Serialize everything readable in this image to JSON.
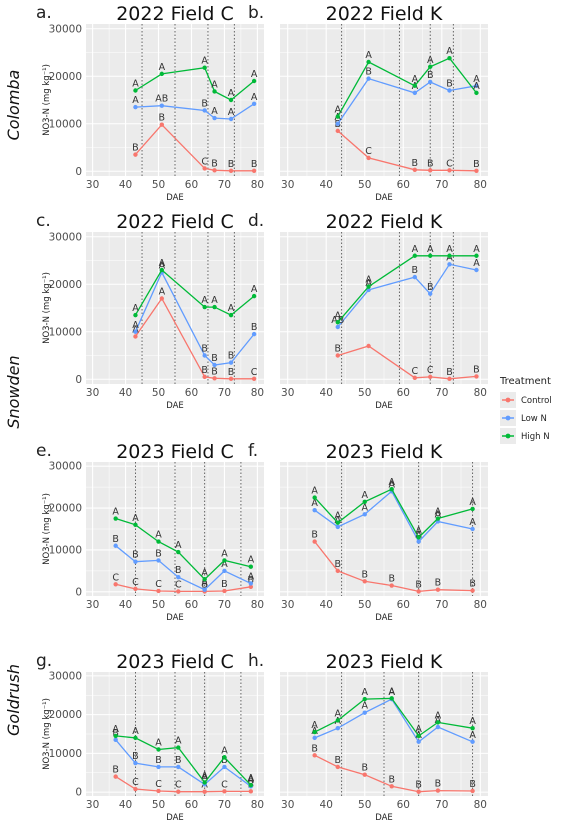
{
  "figure": {
    "panel_letters": [
      "a.",
      "b.",
      "c.",
      "d.",
      "e.",
      "f.",
      "g.",
      "h."
    ],
    "cultivars": [
      "Colomba",
      "Snowden",
      "Goldrush"
    ],
    "legend": {
      "title": "Treatment",
      "items": [
        {
          "label": "Control",
          "color": "#F8766D"
        },
        {
          "label": "Low N",
          "color": "#619CFF"
        },
        {
          "label": "High N",
          "color": "#00BA38"
        }
      ]
    },
    "colors": {
      "panel_bg": "#EBEBEB",
      "grid": "#FFFFFF",
      "vline": "#555555"
    }
  },
  "chart_data": [
    {
      "type": "line",
      "panel": "a.",
      "title": "2022 Field C",
      "xlabel": "DAE",
      "ylabel": "NO3-N (mg kg⁻¹)",
      "show_ylabel": true,
      "xlim": [
        28,
        82
      ],
      "ylim": [
        -1000,
        31000
      ],
      "xticks": [
        30,
        40,
        50,
        60,
        70,
        80
      ],
      "yticks": [
        0,
        10000,
        20000,
        30000
      ],
      "ytick_labels": [
        "0",
        "10000",
        "20000",
        "30000"
      ],
      "vlines": [
        45,
        55,
        65,
        73
      ],
      "x": [
        43,
        51,
        64,
        67,
        72,
        79
      ],
      "series": [
        {
          "name": "Control",
          "values": [
            3500,
            9800,
            600,
            200,
            100,
            100
          ],
          "letters": [
            "B",
            "B",
            "C",
            "B",
            "B",
            "B"
          ]
        },
        {
          "name": "Low N",
          "values": [
            13500,
            13800,
            12800,
            11200,
            11000,
            14200
          ],
          "letters": [
            "A",
            "AB",
            "B",
            "A",
            "A",
            "A"
          ]
        },
        {
          "name": "High N",
          "values": [
            17000,
            20500,
            21800,
            16800,
            15000,
            19000
          ],
          "letters": [
            "A",
            "A",
            "A",
            "A",
            "A",
            "A"
          ]
        }
      ]
    },
    {
      "type": "line",
      "panel": "b.",
      "title": "2022 Field K",
      "xlabel": "DAE",
      "ylabel": "",
      "show_ylabel": false,
      "xlim": [
        28,
        82
      ],
      "ylim": [
        -1000,
        31000
      ],
      "xticks": [
        30,
        40,
        50,
        60,
        70,
        80
      ],
      "yticks": [
        0,
        10000,
        20000,
        30000
      ],
      "ytick_labels": [
        "",
        "",
        "",
        ""
      ],
      "vlines": [
        44,
        59,
        67,
        73
      ],
      "x": [
        43,
        51,
        63,
        67,
        72,
        79
      ],
      "series": [
        {
          "name": "Control",
          "values": [
            8500,
            2800,
            300,
            200,
            200,
            100
          ],
          "letters": [
            "B",
            "C",
            "B",
            "B",
            "C",
            "B"
          ]
        },
        {
          "name": "Low N",
          "values": [
            10000,
            19500,
            16500,
            18800,
            17000,
            18000
          ],
          "letters": [
            "A",
            "B",
            "A",
            "B",
            "B",
            "A"
          ]
        },
        {
          "name": "High N",
          "values": [
            11500,
            23000,
            18000,
            22000,
            23800,
            16500
          ],
          "letters": [
            "A",
            "A",
            "A",
            "A",
            "A",
            "A"
          ]
        }
      ]
    },
    {
      "type": "line",
      "panel": "c.",
      "title": "2022 Field C",
      "xlabel": "DAE",
      "ylabel": "NO3-N (mg kg⁻¹)",
      "show_ylabel": true,
      "xlim": [
        28,
        82
      ],
      "ylim": [
        -1000,
        31000
      ],
      "xticks": [
        30,
        40,
        50,
        60,
        70,
        80
      ],
      "yticks": [
        0,
        10000,
        20000,
        30000
      ],
      "ytick_labels": [
        "0",
        "10000",
        "20000",
        "30000"
      ],
      "vlines": [
        45,
        55,
        65,
        73
      ],
      "x": [
        43,
        51,
        64,
        67,
        72,
        79
      ],
      "series": [
        {
          "name": "Control",
          "values": [
            9000,
            17000,
            500,
            200,
            100,
            100
          ],
          "letters": [
            "A",
            "A",
            "B",
            "B",
            "B",
            "C"
          ]
        },
        {
          "name": "Low N",
          "values": [
            10000,
            22500,
            5000,
            3000,
            3500,
            9500
          ],
          "letters": [
            "A",
            "A",
            "B",
            "B",
            "B",
            "B"
          ]
        },
        {
          "name": "High N",
          "values": [
            13500,
            23000,
            15200,
            15200,
            13500,
            17500
          ],
          "letters": [
            "A",
            "A",
            "A",
            "A",
            "A",
            "A"
          ]
        }
      ]
    },
    {
      "type": "line",
      "panel": "d.",
      "title": "2022 Field K",
      "xlabel": "DAE",
      "ylabel": "",
      "show_ylabel": false,
      "xlim": [
        28,
        82
      ],
      "ylim": [
        -1000,
        31000
      ],
      "xticks": [
        30,
        40,
        50,
        60,
        70,
        80
      ],
      "yticks": [
        0,
        10000,
        20000,
        30000
      ],
      "ytick_labels": [
        "",
        "",
        "",
        ""
      ],
      "vlines": [
        44,
        59,
        67,
        73
      ],
      "x": [
        43,
        51,
        63,
        67,
        72,
        79
      ],
      "series": [
        {
          "name": "Control",
          "values": [
            5000,
            7000,
            300,
            500,
            100,
            600
          ],
          "letters": [
            "B",
            "",
            "C",
            "C",
            "B",
            "B"
          ]
        },
        {
          "name": "Low N",
          "values": [
            11000,
            18800,
            21500,
            18000,
            24200,
            23000
          ],
          "letters": [
            "AB",
            "A",
            "B",
            "B",
            "A",
            "A"
          ]
        },
        {
          "name": "High N",
          "values": [
            12000,
            19500,
            26000,
            26000,
            26000,
            26000
          ],
          "letters": [
            "A",
            "A",
            "A",
            "A",
            "A",
            "A"
          ]
        }
      ]
    },
    {
      "type": "line",
      "panel": "e.",
      "title": "2023 Field C",
      "xlabel": "DAE",
      "ylabel": "NO3-N (mg kg⁻¹)",
      "show_ylabel": true,
      "xlim": [
        28,
        82
      ],
      "ylim": [
        -1000,
        31000
      ],
      "xticks": [
        30,
        40,
        50,
        60,
        70,
        80
      ],
      "yticks": [
        0,
        10000,
        20000,
        30000
      ],
      "ytick_labels": [
        "0",
        "10000",
        "20000",
        "30000"
      ],
      "vlines": [
        43,
        55,
        64,
        75
      ],
      "x": [
        37,
        43,
        50,
        56,
        64,
        70,
        78
      ],
      "series": [
        {
          "name": "Control",
          "values": [
            1800,
            700,
            200,
            100,
            100,
            200,
            1200
          ],
          "letters": [
            "C",
            "C",
            "C",
            "C",
            "B",
            "B",
            "B"
          ]
        },
        {
          "name": "Low N",
          "values": [
            11000,
            7200,
            7500,
            3500,
            500,
            5000,
            2000
          ],
          "letters": [
            "B",
            "B",
            "B",
            "B",
            "A",
            "A",
            "A"
          ]
        },
        {
          "name": "High N",
          "values": [
            17500,
            16000,
            12000,
            9500,
            3000,
            7500,
            6000
          ],
          "letters": [
            "A",
            "A",
            "A",
            "A",
            "A",
            "A",
            "A"
          ]
        }
      ]
    },
    {
      "type": "line",
      "panel": "f.",
      "title": "2023 Field K",
      "xlabel": "DAE",
      "ylabel": "",
      "show_ylabel": false,
      "xlim": [
        28,
        82
      ],
      "ylim": [
        -1000,
        31000
      ],
      "xticks": [
        30,
        40,
        50,
        60,
        70,
        80
      ],
      "yticks": [
        0,
        10000,
        20000,
        30000
      ],
      "ytick_labels": [
        "",
        "",
        "",
        ""
      ],
      "vlines": [
        44,
        64,
        78
      ],
      "x": [
        37,
        43,
        50,
        57,
        64,
        69,
        78
      ],
      "series": [
        {
          "name": "Control",
          "values": [
            12000,
            5000,
            2500,
            1500,
            100,
            500,
            300
          ],
          "letters": [
            "B",
            "B",
            "B",
            "B",
            "B",
            "B",
            "B"
          ]
        },
        {
          "name": "Low N",
          "values": [
            19500,
            15500,
            18500,
            24000,
            12000,
            16800,
            15000
          ],
          "letters": [
            "A",
            "A",
            "A",
            "A",
            "A",
            "A",
            "A"
          ]
        },
        {
          "name": "High N",
          "values": [
            22500,
            16500,
            21500,
            24500,
            13000,
            17500,
            19800
          ],
          "letters": [
            "A",
            "A",
            "A",
            "A",
            "A",
            "A",
            "A"
          ]
        }
      ]
    },
    {
      "type": "line",
      "panel": "g.",
      "title": "2023 Field C",
      "xlabel": "DAE",
      "ylabel": "NO3-N (mg kg⁻¹)",
      "show_ylabel": true,
      "xlim": [
        28,
        82
      ],
      "ylim": [
        -1000,
        31000
      ],
      "xticks": [
        30,
        40,
        50,
        60,
        70,
        80
      ],
      "yticks": [
        0,
        10000,
        20000,
        30000
      ],
      "ytick_labels": [
        "0",
        "10000",
        "20000",
        "30000"
      ],
      "vlines": [
        43,
        55,
        64,
        75
      ],
      "x": [
        37,
        43,
        50,
        56,
        64,
        70,
        78
      ],
      "series": [
        {
          "name": "Control",
          "values": [
            4000,
            800,
            300,
            100,
            100,
            200,
            200
          ],
          "letters": [
            "B",
            "C",
            "C",
            "C",
            "A",
            "C",
            "B"
          ]
        },
        {
          "name": "Low N",
          "values": [
            13500,
            7500,
            6500,
            6500,
            2000,
            6500,
            1500
          ],
          "letters": [
            "B",
            "B",
            "B",
            "B",
            "A",
            "B",
            "A"
          ]
        },
        {
          "name": "High N",
          "values": [
            14500,
            14000,
            11000,
            11500,
            2500,
            9000,
            1800
          ],
          "letters": [
            "A",
            "A",
            "A",
            "A",
            "A",
            "A",
            "A"
          ]
        }
      ]
    },
    {
      "type": "line",
      "panel": "h.",
      "title": "2023 Field K",
      "xlabel": "DAE",
      "ylabel": "",
      "show_ylabel": false,
      "xlim": [
        28,
        82
      ],
      "ylim": [
        -1000,
        31000
      ],
      "xticks": [
        30,
        40,
        50,
        60,
        70,
        80
      ],
      "yticks": [
        0,
        10000,
        20000,
        30000
      ],
      "ytick_labels": [
        "",
        "",
        "",
        ""
      ],
      "vlines": [
        44,
        55,
        64,
        78
      ],
      "x": [
        37,
        43,
        50,
        57,
        64,
        69,
        78
      ],
      "series": [
        {
          "name": "Control",
          "values": [
            9500,
            6500,
            4500,
            1500,
            100,
            400,
            300
          ],
          "letters": [
            "B",
            "B",
            "B",
            "B",
            "B",
            "B",
            "B"
          ]
        },
        {
          "name": "Low N",
          "values": [
            14000,
            16500,
            20500,
            24000,
            13000,
            16800,
            13000
          ],
          "letters": [
            "A",
            "A",
            "A",
            "A",
            "A",
            "A",
            "A"
          ]
        },
        {
          "name": "High N",
          "values": [
            15500,
            18500,
            24000,
            24200,
            14500,
            18000,
            16500
          ],
          "letters": [
            "A",
            "A",
            "A",
            "A",
            "A",
            "A",
            "A"
          ]
        }
      ]
    }
  ]
}
